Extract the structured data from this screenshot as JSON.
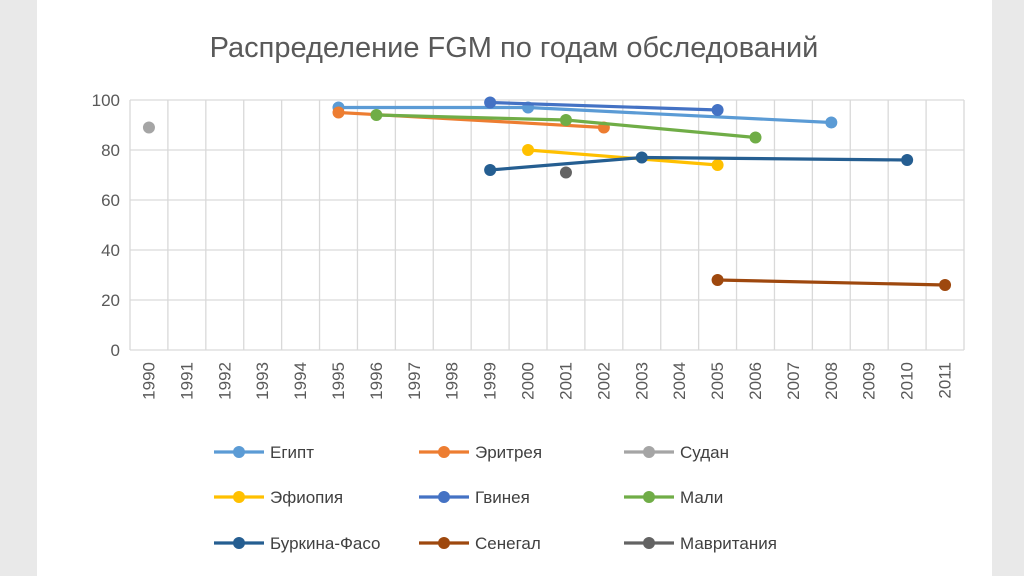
{
  "chart_data": {
    "type": "line",
    "title": "Распределение FGM по годам обследований",
    "xlabel": "",
    "ylabel": "",
    "categories": [
      "1990",
      "1991",
      "1992",
      "1993",
      "1994",
      "1995",
      "1996",
      "1997",
      "1998",
      "1999",
      "2000",
      "2001",
      "2002",
      "2003",
      "2004",
      "2005",
      "2006",
      "2007",
      "2008",
      "2009",
      "2010",
      "2011"
    ],
    "ylim": [
      0,
      100
    ],
    "yticks": [
      0,
      20,
      40,
      60,
      80,
      100
    ],
    "grid": true,
    "legend": "bottom",
    "series": [
      {
        "name": "Египт",
        "color": "#5B9BD5",
        "points": [
          {
            "x": "1995",
            "y": 97
          },
          {
            "x": "2000",
            "y": 97
          },
          {
            "x": "2008",
            "y": 91
          }
        ]
      },
      {
        "name": "Эритрея",
        "color": "#ED7D31",
        "points": [
          {
            "x": "1995",
            "y": 95
          },
          {
            "x": "2002",
            "y": 89
          }
        ]
      },
      {
        "name": "Судан",
        "color": "#A5A5A5",
        "points": [
          {
            "x": "1990",
            "y": 89
          }
        ]
      },
      {
        "name": "Эфиопия",
        "color": "#FFC000",
        "points": [
          {
            "x": "2000",
            "y": 80
          },
          {
            "x": "2005",
            "y": 74
          }
        ]
      },
      {
        "name": "Гвинея",
        "color": "#4472C4",
        "points": [
          {
            "x": "1999",
            "y": 99
          },
          {
            "x": "2005",
            "y": 96
          }
        ]
      },
      {
        "name": "Мали",
        "color": "#70AD47",
        "points": [
          {
            "x": "1996",
            "y": 94
          },
          {
            "x": "2001",
            "y": 92
          },
          {
            "x": "2006",
            "y": 85
          }
        ]
      },
      {
        "name": "Буркина-Фасо",
        "color": "#255E91",
        "points": [
          {
            "x": "1999",
            "y": 72
          },
          {
            "x": "2003",
            "y": 77
          },
          {
            "x": "2010",
            "y": 76
          }
        ]
      },
      {
        "name": "Сенегал",
        "color": "#9E480E",
        "points": [
          {
            "x": "2005",
            "y": 28
          },
          {
            "x": "2011",
            "y": 26
          }
        ]
      },
      {
        "name": "Мавритания",
        "color": "#636363",
        "points": [
          {
            "x": "2001",
            "y": 71
          }
        ]
      }
    ]
  }
}
